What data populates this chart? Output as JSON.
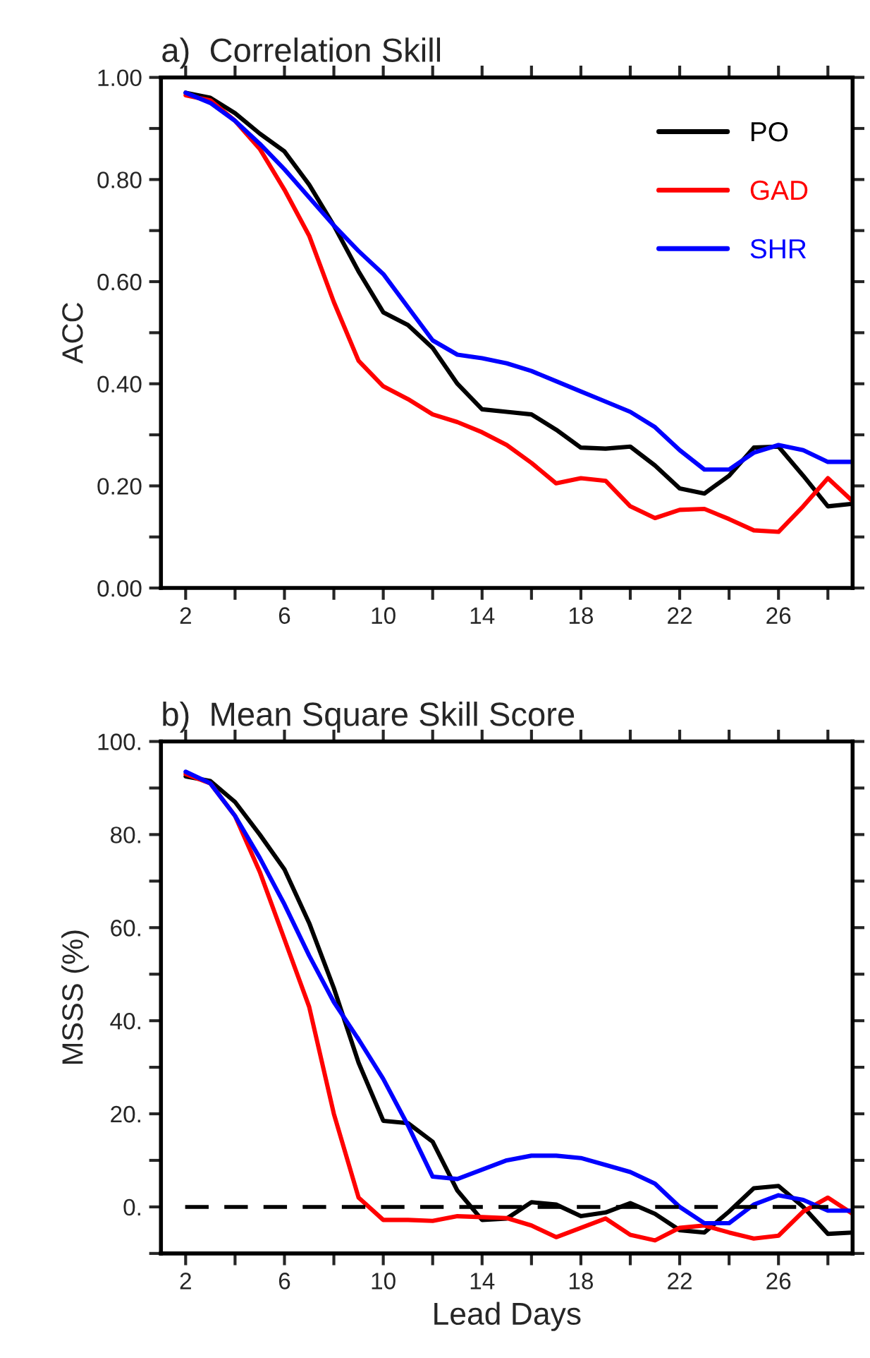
{
  "chart_data": [
    {
      "type": "line",
      "title": "a)  Correlation Skill",
      "ylabel": "ACC",
      "x": [
        2,
        3,
        4,
        5,
        6,
        7,
        8,
        9,
        10,
        11,
        12,
        13,
        14,
        15,
        16,
        17,
        18,
        19,
        20,
        21,
        22,
        23,
        24,
        25,
        26,
        27,
        28,
        29
      ],
      "xlim": [
        1,
        29
      ],
      "xticks": [
        2,
        {
          "value": 4,
          "label": null
        },
        6,
        {
          "value": 8,
          "label": null
        },
        10,
        {
          "value": 12,
          "label": null
        },
        14,
        {
          "value": 16,
          "label": null
        },
        18,
        {
          "value": 20,
          "label": null
        },
        22,
        {
          "value": 24,
          "label": null
        },
        26,
        {
          "value": 28,
          "label": null
        }
      ],
      "ylim": [
        0,
        1
      ],
      "yticks": [
        {
          "value": 0,
          "label": "0.00"
        },
        {
          "value": 0.1,
          "label": null
        },
        {
          "value": 0.2,
          "label": "0.20"
        },
        {
          "value": 0.3,
          "label": null
        },
        {
          "value": 0.4,
          "label": "0.40"
        },
        {
          "value": 0.5,
          "label": null
        },
        {
          "value": 0.6,
          "label": "0.60"
        },
        {
          "value": 0.7,
          "label": null
        },
        {
          "value": 0.8,
          "label": "0.80"
        },
        {
          "value": 0.9,
          "label": null
        },
        {
          "value": 1,
          "label": "1.00"
        }
      ],
      "legend": "top right",
      "grid": false,
      "line_style": "solid",
      "series": [
        {
          "name": "PO",
          "color": "#000000",
          "values": [
            0.97,
            0.96,
            0.93,
            0.89,
            0.855,
            0.79,
            0.71,
            0.62,
            0.54,
            0.515,
            0.47,
            0.4,
            0.35,
            0.345,
            0.34,
            0.31,
            0.275,
            0.273,
            0.277,
            0.24,
            0.195,
            0.185,
            0.22,
            0.275,
            0.277,
            0.22,
            0.16,
            0.165
          ]
        },
        {
          "name": "GAD",
          "color": "#ff0000",
          "values": [
            0.965,
            0.955,
            0.915,
            0.86,
            0.78,
            0.69,
            0.56,
            0.445,
            0.395,
            0.37,
            0.34,
            0.325,
            0.305,
            0.28,
            0.245,
            0.205,
            0.215,
            0.21,
            0.16,
            0.137,
            0.153,
            0.155,
            0.135,
            0.113,
            0.11,
            0.16,
            0.215,
            0.17
          ]
        },
        {
          "name": "SHR",
          "color": "#0000ff",
          "values": [
            0.97,
            0.95,
            0.915,
            0.87,
            0.82,
            0.765,
            0.71,
            0.66,
            0.615,
            0.55,
            0.485,
            0.457,
            0.45,
            0.44,
            0.425,
            0.405,
            0.385,
            0.365,
            0.345,
            0.315,
            0.27,
            0.232,
            0.232,
            0.265,
            0.28,
            0.27,
            0.247,
            0.247
          ]
        }
      ]
    },
    {
      "type": "line",
      "title": "b)  Mean Square Skill Score",
      "ylabel": "MSSS (%)",
      "xlabel": "Lead Days",
      "x": [
        2,
        3,
        4,
        5,
        6,
        7,
        8,
        9,
        10,
        11,
        12,
        13,
        14,
        15,
        16,
        17,
        18,
        19,
        20,
        21,
        22,
        23,
        24,
        25,
        26,
        27,
        28,
        29
      ],
      "xlim": [
        1,
        29
      ],
      "xticks": [
        2,
        {
          "value": 4,
          "label": null
        },
        6,
        {
          "value": 8,
          "label": null
        },
        10,
        {
          "value": 12,
          "label": null
        },
        14,
        {
          "value": 16,
          "label": null
        },
        18,
        {
          "value": 20,
          "label": null
        },
        22,
        {
          "value": 24,
          "label": null
        },
        26,
        {
          "value": 28,
          "label": null
        }
      ],
      "ylim": [
        -10,
        100
      ],
      "yticks": [
        {
          "value": -10,
          "label": null
        },
        {
          "value": 0,
          "label": "0."
        },
        {
          "value": 10,
          "label": null
        },
        {
          "value": 20,
          "label": "20."
        },
        {
          "value": 30,
          "label": null
        },
        {
          "value": 40,
          "label": "40."
        },
        {
          "value": 50,
          "label": null
        },
        {
          "value": 60,
          "label": "60."
        },
        {
          "value": 70,
          "label": null
        },
        {
          "value": 80,
          "label": "80."
        },
        {
          "value": 90,
          "label": null
        },
        {
          "value": 100,
          "label": "100."
        }
      ],
      "grid": false,
      "line_style": "solid",
      "ref_lines": [
        {
          "axis": "y",
          "value": 0,
          "label": null,
          "color": "#000000",
          "line_style": "dashed"
        }
      ],
      "series": [
        {
          "color": "#000000",
          "values": [
            92.5,
            91.5,
            87,
            80,
            72.5,
            61,
            47,
            31,
            18.5,
            18,
            14,
            3.5,
            -2.8,
            -2.5,
            1,
            0.5,
            -2,
            -1.2,
            0.8,
            -1.5,
            -5,
            -5.5,
            -1,
            4,
            4.5,
            0,
            -5.8,
            -5.5
          ]
        },
        {
          "color": "#ff0000",
          "values": [
            93,
            91,
            84,
            72,
            57.5,
            43,
            20,
            2,
            -2.8,
            -2.8,
            -3,
            -2,
            -2.2,
            -2.4,
            -4,
            -6.5,
            -4.5,
            -2.5,
            -6,
            -7.2,
            -4.5,
            -4,
            -5.5,
            -6.8,
            -6.2,
            -1,
            2,
            -1.5
          ]
        },
        {
          "color": "#0000ff",
          "values": [
            93.5,
            91,
            84,
            75,
            65,
            54,
            44,
            36,
            27.5,
            17.5,
            6.5,
            6,
            8,
            10,
            11,
            11,
            10.5,
            9,
            7.5,
            5,
            0,
            -3.5,
            -3.5,
            0.5,
            2.5,
            1.5,
            -0.8,
            -0.8
          ]
        }
      ]
    }
  ]
}
